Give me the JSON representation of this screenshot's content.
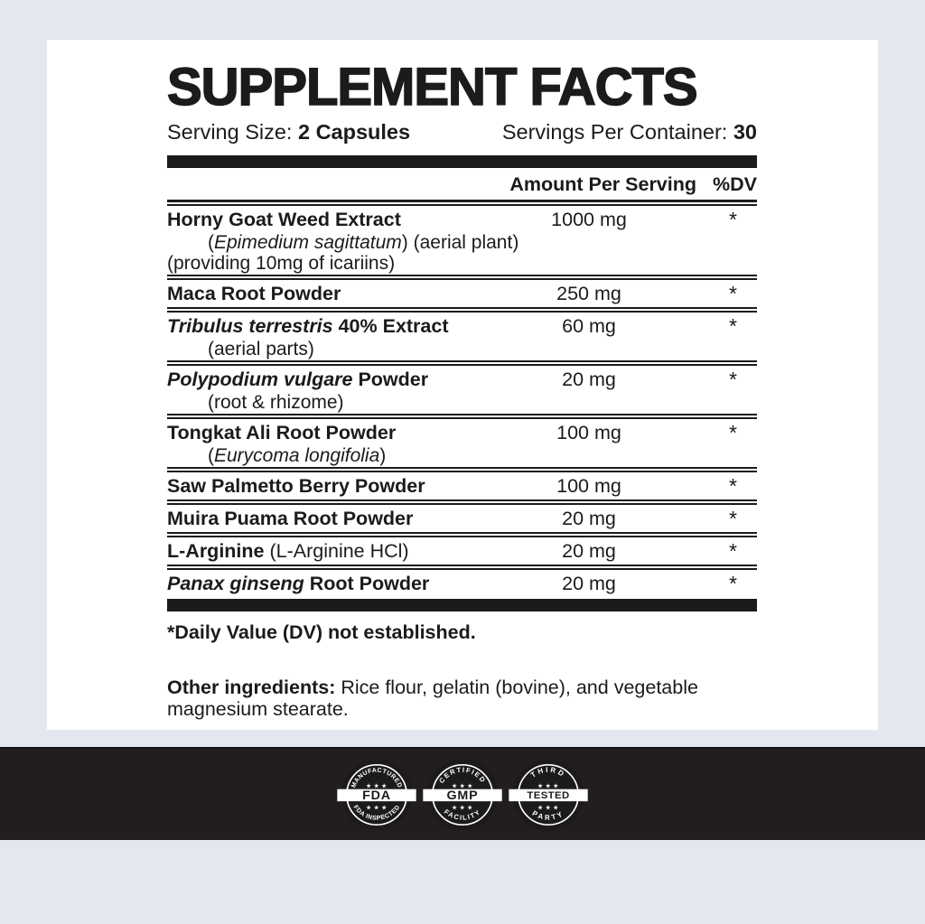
{
  "colors": {
    "page_bg": "#e4e6f0",
    "card_bg": "#ffffff",
    "ink": "#1d1a1b",
    "band_bg": "#221e1f"
  },
  "header": {
    "title": "SUPPLEMENT FACTS",
    "serving_size_label": "Serving Size:",
    "serving_size_value": "2 Capsules",
    "servings_per_container_label": "Servings Per Container:",
    "servings_per_container_value": "30"
  },
  "table": {
    "amount_header": "Amount Per Serving",
    "dv_header": "%DV",
    "rows": [
      {
        "name": [
          [
            "Horny Goat Weed Extract",
            "b"
          ]
        ],
        "amount": "1000 mg",
        "dv": "*",
        "subs": [
          {
            "indent": true,
            "parts": [
              [
                "(",
                "n"
              ],
              [
                "Epimedium sagittatum",
                "i"
              ],
              [
                ") (aerial plant)",
                "n"
              ]
            ]
          },
          {
            "indent": false,
            "parts": [
              [
                "(providing 10mg of icariins)",
                "n"
              ]
            ]
          }
        ]
      },
      {
        "name": [
          [
            "Maca Root Powder",
            "b"
          ]
        ],
        "amount": "250 mg",
        "dv": "*",
        "subs": []
      },
      {
        "name": [
          [
            "Tribulus terrestris",
            "bi"
          ],
          [
            " 40% Extract",
            "b"
          ]
        ],
        "amount": "60 mg",
        "dv": "*",
        "subs": [
          {
            "indent": true,
            "parts": [
              [
                "(aerial parts)",
                "n"
              ]
            ]
          }
        ]
      },
      {
        "name": [
          [
            "Polypodium vulgare",
            "bi"
          ],
          [
            " Powder",
            "b"
          ]
        ],
        "amount": "20 mg",
        "dv": "*",
        "subs": [
          {
            "indent": true,
            "parts": [
              [
                "(root & rhizome)",
                "n"
              ]
            ]
          }
        ]
      },
      {
        "name": [
          [
            "Tongkat Ali Root Powder",
            "b"
          ]
        ],
        "amount": "100 mg",
        "dv": "*",
        "subs": [
          {
            "indent": true,
            "parts": [
              [
                "(",
                "n"
              ],
              [
                "Eurycoma longifolia",
                "i"
              ],
              [
                ")",
                "n"
              ]
            ]
          }
        ]
      },
      {
        "name": [
          [
            "Saw Palmetto Berry Powder",
            "b"
          ]
        ],
        "amount": "100 mg",
        "dv": "*",
        "subs": []
      },
      {
        "name": [
          [
            "Muira Puama Root Powder",
            "b"
          ]
        ],
        "amount": "20 mg",
        "dv": "*",
        "subs": []
      },
      {
        "name": [
          [
            "L-Arginine",
            "b"
          ],
          [
            " (L-Arginine HCl)",
            "n"
          ]
        ],
        "amount": "20 mg",
        "dv": "*",
        "subs": []
      },
      {
        "name": [
          [
            "Panax ginseng",
            "bi"
          ],
          [
            " Root Powder",
            "b"
          ]
        ],
        "amount": "20 mg",
        "dv": "*",
        "subs": []
      }
    ],
    "footnote": "*Daily Value (DV) not established."
  },
  "other_ingredients": {
    "label": "Other ingredients:",
    "text": " Rice flour, gelatin (bovine), and vegetable magnesium stearate."
  },
  "badges": [
    {
      "top": "MANUFACTURED",
      "center": "FDA",
      "bottom": "FDA INSPECTED",
      "stars_top": "★ ★ ★",
      "stars_bottom": "★ ★ ★"
    },
    {
      "top": "CERTIFIED",
      "center": "GMP",
      "bottom": "FACILITY",
      "stars_top": "★ ★ ★",
      "stars_bottom": "★ ★ ★"
    },
    {
      "top": "THIRD",
      "center": "TESTED",
      "bottom": "PARTY",
      "stars_top": "★ ★ ★",
      "stars_bottom": "★ ★ ★"
    }
  ]
}
